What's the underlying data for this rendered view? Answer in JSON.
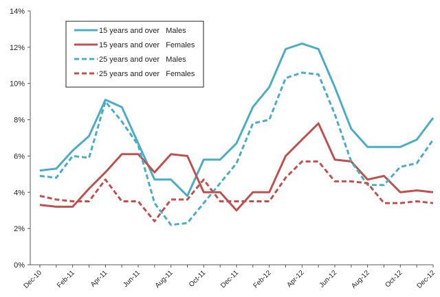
{
  "chart_data": {
    "type": "line",
    "x": [
      "Dec-10",
      "Jan-11",
      "Feb-11",
      "Mar-11",
      "Apr-11",
      "May-11",
      "Jun-11",
      "Jul-11",
      "Aug-11",
      "Sep-11",
      "Oct-11",
      "Nov-11",
      "Dec-11",
      "Jan-12",
      "Feb-12",
      "Mar-12",
      "Apr-12",
      "May-12",
      "Jun-12",
      "Jul-12",
      "Aug-12",
      "Sep-12",
      "Oct-12",
      "Nov-12",
      "Dec-12"
    ],
    "xtick_labels": [
      "Dec-10",
      "Feb-11",
      "Apr-11",
      "Jun-11",
      "Aug-11",
      "Oct-11",
      "Dec-11",
      "Feb-12",
      "Apr-12",
      "Jun-12",
      "Aug-12",
      "Oct-12",
      "Dec-12"
    ],
    "ylim": [
      0,
      14
    ],
    "ytick_labels": [
      "0%",
      "2%",
      "4%",
      "6%",
      "8%",
      "10%",
      "12%",
      "14%"
    ],
    "y_unit": "%",
    "grid": false,
    "legend_position": "top-left",
    "series": [
      {
        "name": "15 years and over   Males",
        "color": "#4BACC6",
        "dash": "solid",
        "values": [
          5.2,
          5.3,
          6.3,
          7.1,
          9.1,
          8.7,
          6.7,
          4.7,
          4.7,
          3.8,
          5.8,
          5.8,
          6.7,
          8.7,
          9.8,
          11.9,
          12.2,
          11.9,
          9.8,
          7.5,
          6.5,
          6.5,
          6.5,
          6.9,
          8.1
        ]
      },
      {
        "name": "15 years and over   Females",
        "color": "#C0504D",
        "dash": "solid",
        "values": [
          3.3,
          3.2,
          3.2,
          4.2,
          5.1,
          6.1,
          6.1,
          5.1,
          6.1,
          6.0,
          4.0,
          4.0,
          3.0,
          4.0,
          4.0,
          6.0,
          6.9,
          7.8,
          5.8,
          5.7,
          4.7,
          4.9,
          4.0,
          4.1,
          4.0
        ]
      },
      {
        "name": "25 years and over   Males",
        "color": "#4BACC6",
        "dash": "dashed",
        "values": [
          4.9,
          4.8,
          6.0,
          5.9,
          9.0,
          7.9,
          6.6,
          3.4,
          2.2,
          2.3,
          3.4,
          4.5,
          5.6,
          7.8,
          8.0,
          10.3,
          10.6,
          10.5,
          8.3,
          5.7,
          4.4,
          4.4,
          5.4,
          5.6,
          6.9
        ]
      },
      {
        "name": "25 years and over   Females",
        "color": "#C0504D",
        "dash": "dashed",
        "values": [
          3.8,
          3.6,
          3.5,
          3.5,
          4.7,
          3.5,
          3.5,
          2.4,
          3.6,
          3.6,
          4.7,
          3.5,
          3.5,
          3.5,
          3.5,
          4.8,
          5.7,
          5.7,
          4.6,
          4.6,
          4.5,
          3.4,
          3.4,
          3.5,
          3.4
        ]
      }
    ]
  }
}
